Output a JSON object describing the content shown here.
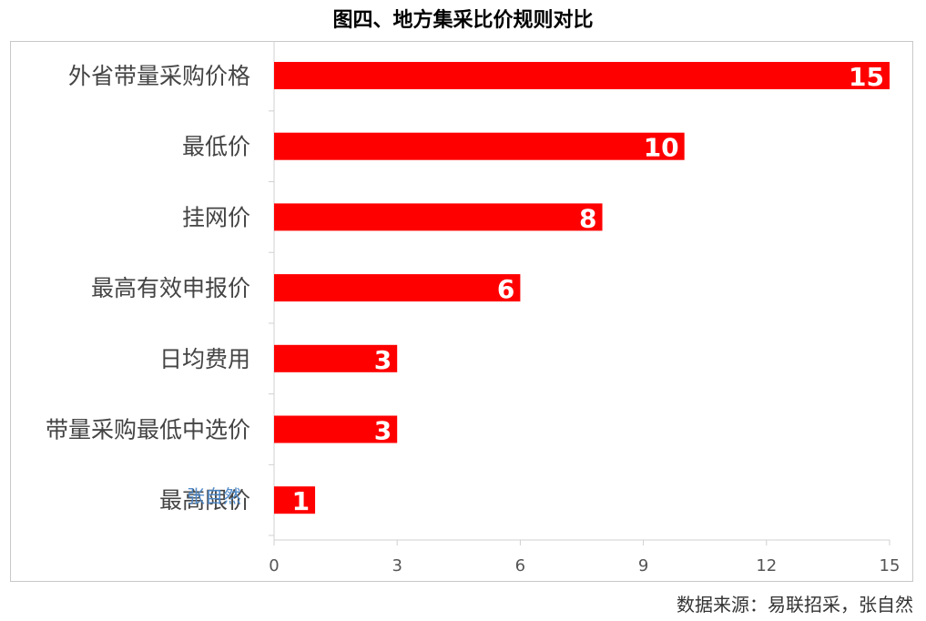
{
  "chart_data": {
    "type": "bar",
    "orientation": "horizontal",
    "title": "图四、地方集采比价规则对比",
    "categories": [
      "外省带量采购价格",
      "最低价",
      "挂网价",
      "最高有效申报价",
      "日均费用",
      "带量采购最低中选价",
      "最高限价"
    ],
    "values": [
      15,
      10,
      8,
      6,
      3,
      3,
      1
    ],
    "xlim": [
      0,
      15
    ],
    "xticks": [
      0,
      3,
      6,
      9,
      12,
      15
    ],
    "bar_color": "#ff0000",
    "value_label_color": "#ffffff",
    "grid": false
  },
  "source": "数据来源：易联招采，张自然",
  "watermark": "张自然"
}
